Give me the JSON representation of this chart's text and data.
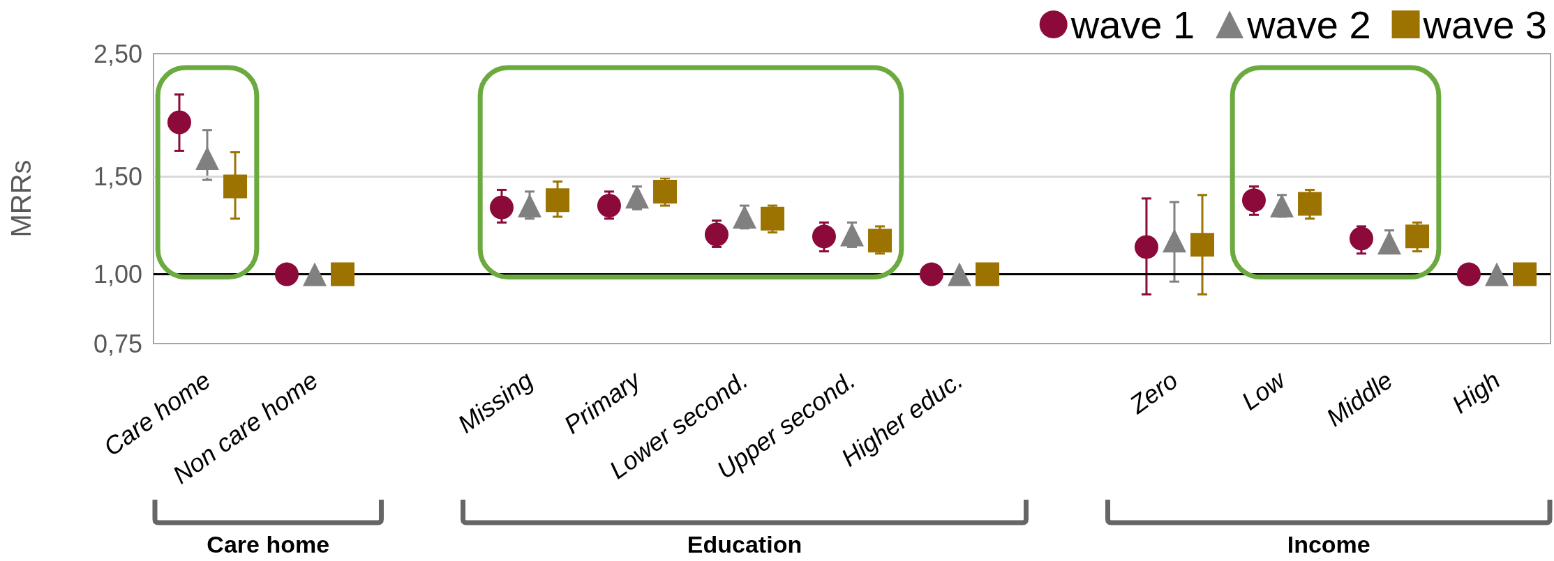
{
  "chart_data": {
    "type": "scatter",
    "ylabel": "MRRs",
    "categories": [
      "Care home",
      "Non care home",
      null,
      "Missing",
      "Primary",
      "Lower second.",
      "Upper second.",
      "Higher educ.",
      null,
      "Zero",
      "Low",
      "Middle",
      "High"
    ],
    "series": [
      {
        "name": "wave 1",
        "color": "#8b0a3a",
        "marker": "circle",
        "values": [
          1.88,
          1.0,
          null,
          1.32,
          1.33,
          1.18,
          1.17,
          1.0,
          null,
          1.12,
          1.36,
          1.16,
          1.0
        ],
        "errors": [
          [
            1.67,
            2.11
          ],
          null,
          null,
          [
            1.24,
            1.42
          ],
          [
            1.26,
            1.41
          ],
          [
            1.12,
            1.25
          ],
          [
            1.1,
            1.24
          ],
          null,
          null,
          [
            0.92,
            1.37
          ],
          [
            1.28,
            1.44
          ],
          [
            1.09,
            1.22
          ],
          null
        ]
      },
      {
        "name": "wave 2",
        "color": "#808080",
        "marker": "triangle",
        "values": [
          1.62,
          1.0,
          null,
          1.33,
          1.38,
          1.27,
          1.18,
          1.0,
          null,
          1.15,
          1.33,
          1.14,
          1.0
        ],
        "errors": [
          [
            1.48,
            1.82
          ],
          null,
          null,
          [
            1.26,
            1.41
          ],
          [
            1.31,
            1.44
          ],
          [
            1.21,
            1.33
          ],
          [
            1.12,
            1.24
          ],
          null,
          null,
          [
            0.97,
            1.35
          ],
          [
            1.27,
            1.39
          ],
          [
            1.14,
            1.2
          ],
          null
        ]
      },
      {
        "name": "wave 3",
        "color": "#9c7300",
        "marker": "square",
        "values": [
          1.44,
          1.0,
          null,
          1.36,
          1.41,
          1.26,
          1.15,
          1.0,
          null,
          1.13,
          1.34,
          1.17,
          1.0
        ],
        "errors": [
          [
            1.26,
            1.66
          ],
          null,
          null,
          [
            1.27,
            1.47
          ],
          [
            1.33,
            1.49
          ],
          [
            1.19,
            1.33
          ],
          [
            1.09,
            1.22
          ],
          null,
          null,
          [
            0.92,
            1.39
          ],
          [
            1.26,
            1.42
          ],
          [
            1.1,
            1.24
          ],
          null
        ]
      }
    ],
    "log": "y",
    "ylim": [
      0.75,
      2.5
    ],
    "yticks": [
      {
        "value": 0.75,
        "label": "0,75"
      },
      {
        "value": 1.0,
        "label": "1,00"
      },
      {
        "value": 1.5,
        "label": "1,50"
      },
      {
        "value": 2.5,
        "label": "2,50"
      }
    ],
    "legend": "top right",
    "ref_lines": [
      {
        "axis": "y",
        "value": 1.0,
        "color": "#000000"
      },
      {
        "axis": "y",
        "value": 1.5,
        "color": "#d9d9d9"
      }
    ],
    "annotations": [
      "Care home",
      "Education",
      "Income"
    ]
  }
}
